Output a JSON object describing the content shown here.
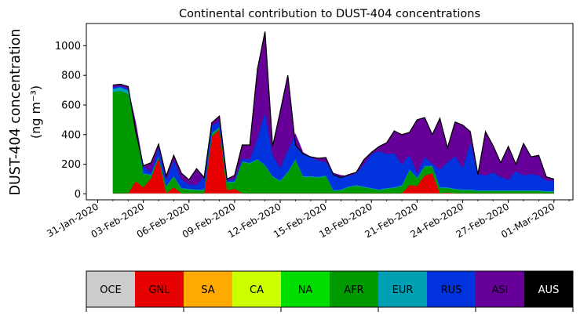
{
  "chart_data": {
    "type": "area",
    "stacked": true,
    "title": "Continental contribution to DUST-404 concentrations",
    "ylabel_line1": "DUST-404 concentration",
    "ylabel_line2": "(ng m⁻³)",
    "xlabel": "",
    "ylim": [
      -40,
      1150
    ],
    "yticks": [
      0,
      200,
      400,
      600,
      800,
      1000
    ],
    "xlim": [
      "2020-01-30T06:00",
      "2020-03-02T06:00"
    ],
    "xtick_labels": [
      "31-Jan-2020",
      "03-Feb-2020",
      "06-Feb-2020",
      "09-Feb-2020",
      "12-Feb-2020",
      "15-Feb-2020",
      "18-Feb-2020",
      "21-Feb-2020",
      "24-Feb-2020",
      "27-Feb-2020",
      "01-Mar-2020"
    ],
    "xtick_dates": [
      "2020-01-31",
      "2020-02-03",
      "2020-02-06",
      "2020-02-09",
      "2020-02-12",
      "2020-02-15",
      "2020-02-18",
      "2020-02-21",
      "2020-02-24",
      "2020-02-27",
      "2020-03-01"
    ],
    "x": [
      "2020-02-01T00:00",
      "2020-02-01T12:00",
      "2020-02-02T00:00",
      "2020-02-02T12:00",
      "2020-02-03T00:00",
      "2020-02-03T12:00",
      "2020-02-04T00:00",
      "2020-02-04T12:00",
      "2020-02-05T00:00",
      "2020-02-05T12:00",
      "2020-02-06T00:00",
      "2020-02-06T12:00",
      "2020-02-07T00:00",
      "2020-02-07T12:00",
      "2020-02-08T00:00",
      "2020-02-08T12:00",
      "2020-02-09T00:00",
      "2020-02-09T12:00",
      "2020-02-10T00:00",
      "2020-02-10T12:00",
      "2020-02-11T00:00",
      "2020-02-11T12:00",
      "2020-02-12T00:00",
      "2020-02-12T12:00",
      "2020-02-13T00:00",
      "2020-02-13T12:00",
      "2020-02-14T00:00",
      "2020-02-14T12:00",
      "2020-02-15T00:00",
      "2020-02-15T12:00",
      "2020-02-16T00:00",
      "2020-02-16T12:00",
      "2020-02-17T00:00",
      "2020-02-17T12:00",
      "2020-02-18T00:00",
      "2020-02-18T12:00",
      "2020-02-19T00:00",
      "2020-02-19T12:00",
      "2020-02-20T00:00",
      "2020-02-20T12:00",
      "2020-02-21T00:00",
      "2020-02-21T12:00",
      "2020-02-22T00:00",
      "2020-02-22T12:00",
      "2020-02-23T00:00",
      "2020-02-23T12:00",
      "2020-02-24T00:00",
      "2020-02-24T12:00",
      "2020-02-25T00:00",
      "2020-02-25T12:00",
      "2020-02-26T00:00",
      "2020-02-26T12:00",
      "2020-02-27T00:00",
      "2020-02-27T12:00",
      "2020-02-28T00:00",
      "2020-02-28T12:00",
      "2020-02-29T00:00",
      "2020-02-29T12:00",
      "2020-03-01T00:00"
    ],
    "series": [
      {
        "name": "OCE",
        "color": "#cccccc",
        "values": [
          5,
          5,
          5,
          5,
          5,
          5,
          5,
          5,
          5,
          5,
          5,
          5,
          5,
          5,
          5,
          5,
          5,
          5,
          5,
          5,
          5,
          5,
          5,
          5,
          5,
          5,
          5,
          5,
          5,
          5,
          5,
          5,
          5,
          5,
          5,
          5,
          5,
          5,
          5,
          5,
          5,
          5,
          5,
          5,
          5,
          5,
          5,
          5,
          5,
          5,
          5,
          5,
          5,
          5,
          5,
          5,
          5,
          5,
          5
        ]
      },
      {
        "name": "GNL",
        "color": "#e60000",
        "values": [
          0,
          0,
          0,
          80,
          40,
          100,
          240,
          0,
          40,
          0,
          0,
          0,
          0,
          380,
          430,
          20,
          30,
          0,
          0,
          0,
          0,
          0,
          0,
          0,
          0,
          0,
          0,
          0,
          0,
          0,
          0,
          0,
          0,
          0,
          0,
          0,
          0,
          0,
          0,
          55,
          50,
          120,
          135,
          0,
          5,
          0,
          0,
          0,
          0,
          0,
          0,
          0,
          0,
          0,
          0,
          0,
          0,
          0,
          0
        ]
      },
      {
        "name": "SA",
        "color": "#ffaa00",
        "values": [
          0,
          0,
          0,
          0,
          0,
          0,
          0,
          0,
          0,
          0,
          0,
          0,
          0,
          0,
          0,
          0,
          0,
          0,
          0,
          0,
          0,
          0,
          0,
          0,
          0,
          0,
          0,
          0,
          0,
          0,
          0,
          0,
          0,
          0,
          0,
          0,
          0,
          0,
          0,
          0,
          0,
          0,
          0,
          0,
          0,
          0,
          0,
          0,
          0,
          0,
          0,
          0,
          0,
          0,
          0,
          0,
          0,
          0,
          0
        ]
      },
      {
        "name": "CA",
        "color": "#ccff00",
        "values": [
          0,
          0,
          0,
          0,
          0,
          0,
          0,
          0,
          0,
          0,
          0,
          0,
          0,
          0,
          0,
          0,
          0,
          0,
          0,
          0,
          0,
          0,
          0,
          0,
          0,
          0,
          0,
          0,
          0,
          0,
          0,
          0,
          0,
          0,
          0,
          0,
          0,
          0,
          0,
          0,
          0,
          0,
          0,
          0,
          0,
          0,
          0,
          0,
          0,
          0,
          0,
          0,
          0,
          0,
          0,
          0,
          0,
          0,
          0
        ]
      },
      {
        "name": "NA",
        "color": "#00dd00",
        "values": [
          0,
          0,
          0,
          0,
          0,
          0,
          0,
          0,
          0,
          0,
          0,
          0,
          0,
          0,
          0,
          0,
          0,
          0,
          0,
          0,
          0,
          0,
          0,
          0,
          0,
          0,
          0,
          0,
          0,
          0,
          0,
          0,
          0,
          0,
          0,
          0,
          0,
          0,
          0,
          0,
          0,
          0,
          0,
          0,
          0,
          0,
          0,
          0,
          0,
          0,
          0,
          0,
          0,
          0,
          0,
          0,
          0,
          0,
          0
        ]
      },
      {
        "name": "AFR",
        "color": "#009900",
        "values": [
          685,
          690,
          670,
          380,
          90,
          20,
          5,
          45,
          70,
          30,
          25,
          20,
          20,
          20,
          10,
          50,
          45,
          210,
          200,
          225,
          185,
          110,
          80,
          140,
          225,
          110,
          110,
          105,
          115,
          15,
          20,
          40,
          50,
          40,
          30,
          20,
          30,
          35,
          50,
          100,
          50,
          60,
          45,
          35,
          30,
          25,
          20,
          20,
          15,
          15,
          15,
          15,
          15,
          15,
          15,
          15,
          15,
          10,
          10
        ]
      },
      {
        "name": "EUR",
        "color": "#00a0b4",
        "values": [
          20,
          25,
          25,
          10,
          5,
          5,
          5,
          5,
          5,
          5,
          5,
          5,
          5,
          5,
          5,
          5,
          5,
          5,
          5,
          5,
          5,
          5,
          5,
          5,
          5,
          5,
          5,
          5,
          5,
          5,
          5,
          5,
          5,
          5,
          5,
          5,
          5,
          5,
          5,
          5,
          5,
          5,
          5,
          5,
          5,
          5,
          5,
          5,
          5,
          5,
          5,
          5,
          5,
          5,
          5,
          5,
          5,
          5,
          5
        ]
      },
      {
        "name": "RUS",
        "color": "#0033dd",
        "values": [
          10,
          10,
          10,
          5,
          45,
          20,
          60,
          40,
          110,
          60,
          30,
          30,
          90,
          50,
          40,
          10,
          15,
          20,
          25,
          140,
          360,
          140,
          85,
          145,
          170,
          160,
          130,
          110,
          90,
          115,
          95,
          70,
          80,
          150,
          230,
          260,
          230,
          230,
          140,
          100,
          30,
          60,
          15,
          120,
          170,
          220,
          145,
          320,
          110,
          100,
          120,
          90,
          70,
          130,
          100,
          110,
          100,
          70,
          70
        ]
      },
      {
        "name": "ASI",
        "color": "#660099",
        "values": [
          0,
          0,
          0,
          0,
          0,
          0,
          0,
          0,
          0,
          0,
          0,
          0,
          0,
          0,
          0,
          0,
          0,
          0,
          0,
          0,
          0,
          0,
          0,
          0,
          0,
          0,
          0,
          0,
          0,
          0,
          0,
          0,
          0,
          0,
          0,
          0,
          0,
          0,
          0,
          0,
          0,
          0,
          0,
          0,
          0,
          0,
          0,
          0,
          0,
          0,
          0,
          0,
          0,
          0,
          0,
          0,
          0,
          0,
          0
        ]
      },
      {
        "name": "AUS",
        "color": "#000000",
        "values": [
          0,
          0,
          0,
          0,
          0,
          0,
          0,
          0,
          0,
          0,
          0,
          0,
          0,
          0,
          0,
          0,
          0,
          0,
          0,
          0,
          0,
          0,
          0,
          0,
          0,
          0,
          0,
          0,
          0,
          0,
          0,
          0,
          0,
          0,
          0,
          0,
          0,
          0,
          0,
          0,
          0,
          0,
          0,
          0,
          0,
          0,
          0,
          0,
          0,
          0,
          0,
          0,
          0,
          0,
          0,
          0,
          0,
          0,
          0
        ]
      }
    ],
    "total": [
      735,
      740,
      725,
      420,
      190,
      210,
      335,
      120,
      260,
      140,
      95,
      170,
      110,
      480,
      525,
      100,
      125,
      330,
      330,
      840,
      1095,
      320,
      555,
      800,
      330,
      270,
      250,
      240,
      245,
      130,
      110,
      130,
      145,
      230,
      280,
      320,
      345,
      425,
      400,
      415,
      500,
      515,
      400,
      510,
      310,
      485,
      465,
      420,
      130,
      420,
      325,
      210,
      320,
      200,
      340,
      250,
      260,
      115,
      100
    ],
    "legend": {
      "placement": "bottom",
      "entries": [
        {
          "label": "OCE",
          "color": "#cccccc",
          "text_color": "#000000"
        },
        {
          "label": "GNL",
          "color": "#e60000",
          "text_color": "#000000"
        },
        {
          "label": "SA",
          "color": "#ffaa00",
          "text_color": "#000000"
        },
        {
          "label": "CA",
          "color": "#ccff00",
          "text_color": "#000000"
        },
        {
          "label": "NA",
          "color": "#00dd00",
          "text_color": "#000000"
        },
        {
          "label": "AFR",
          "color": "#009900",
          "text_color": "#000000"
        },
        {
          "label": "EUR",
          "color": "#00a0b4",
          "text_color": "#000000"
        },
        {
          "label": "RUS",
          "color": "#0033dd",
          "text_color": "#000000"
        },
        {
          "label": "ASI",
          "color": "#660099",
          "text_color": "#000000"
        },
        {
          "label": "AUS",
          "color": "#000000",
          "text_color": "#ffffff"
        }
      ]
    },
    "grid": false
  }
}
